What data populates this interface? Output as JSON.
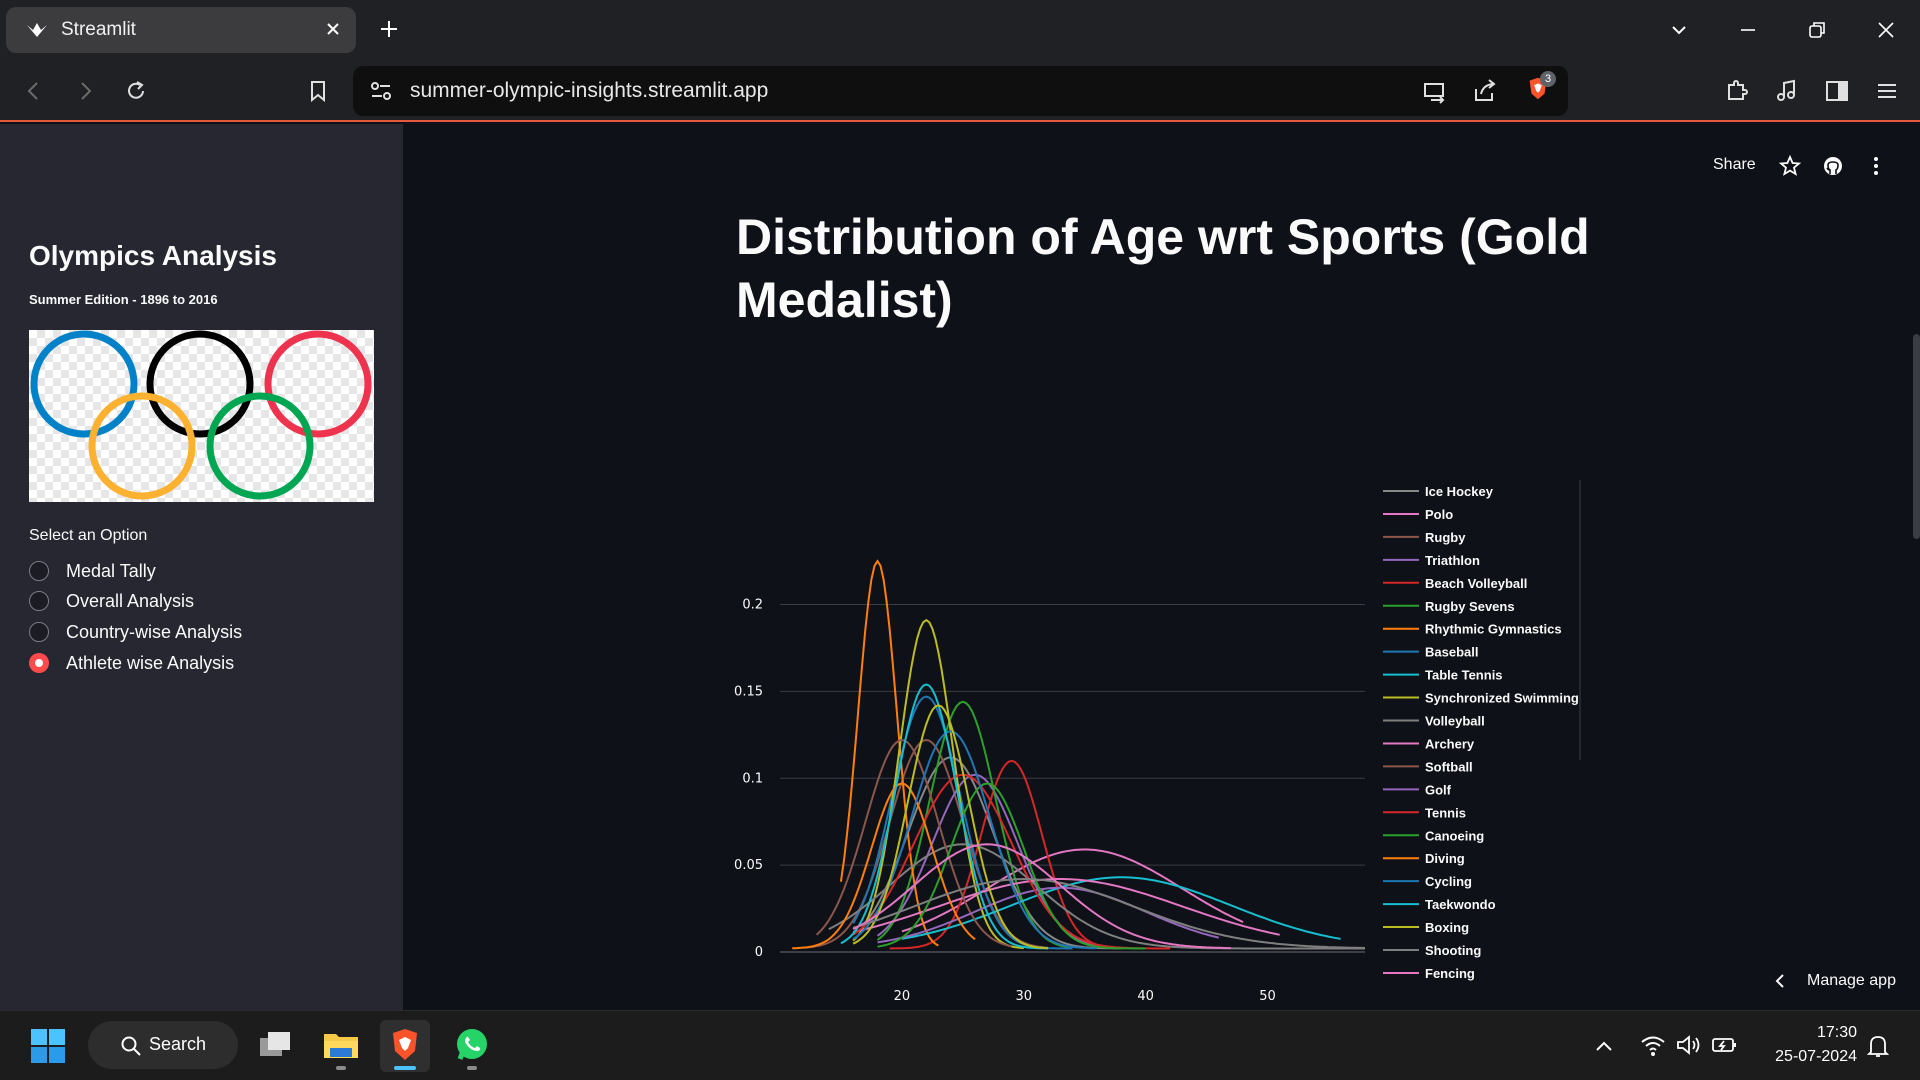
{
  "browser": {
    "tab_title": "Streamlit",
    "url": "summer-olympic-insights.streamlit.app",
    "shield_badge": "3"
  },
  "sidebar": {
    "title": "Olympics Analysis",
    "subtitle": "Summer Edition - 1896 to 2016",
    "select_label": "Select an Option",
    "options": [
      {
        "label": "Medal Tally",
        "selected": false
      },
      {
        "label": "Overall Analysis",
        "selected": false
      },
      {
        "label": "Country-wise Analysis",
        "selected": false
      },
      {
        "label": "Athlete wise Analysis",
        "selected": true
      }
    ]
  },
  "header": {
    "share_label": "Share"
  },
  "page": {
    "title": "Distribution of Age wrt Sports (Gold Medalist)"
  },
  "manage_app_label": "Manage app",
  "taskbar": {
    "search_label": "Search",
    "time": "17:30",
    "date": "25-07-2024"
  },
  "chart_data": {
    "type": "line",
    "title": "",
    "xlabel": "",
    "ylabel": "",
    "xlim": [
      10,
      58
    ],
    "ylim": [
      0,
      0.24
    ],
    "x_ticks": [
      "20",
      "30",
      "40",
      "50"
    ],
    "y_ticks": [
      "0",
      "0.05",
      "0.1",
      "0.15",
      "0.2"
    ],
    "grid": true,
    "legend_position": "right",
    "series": [
      {
        "name": "Ice Hockey",
        "color": "#888888",
        "peak": 24,
        "sd": 3.5,
        "amp": 0.11,
        "start": 17,
        "end": 38
      },
      {
        "name": "Polo",
        "color": "#e377c2",
        "peak": 35,
        "sd": 8,
        "amp": 0.057,
        "start": 20,
        "end": 48
      },
      {
        "name": "Rugby",
        "color": "#8c564b",
        "peak": 22,
        "sd": 3,
        "amp": 0.12,
        "start": 12,
        "end": 32
      },
      {
        "name": "Triathlon",
        "color": "#9467bd",
        "peak": 26,
        "sd": 3.5,
        "amp": 0.1,
        "start": 18,
        "end": 38
      },
      {
        "name": "Beach Volleyball",
        "color": "#d62728",
        "peak": 29,
        "sd": 2.5,
        "amp": 0.108,
        "start": 19,
        "end": 38
      },
      {
        "name": "Rugby Sevens",
        "color": "#2ca02c",
        "peak": 25,
        "sd": 2.7,
        "amp": 0.142,
        "start": 18,
        "end": 34
      },
      {
        "name": "Rhythmic Gymnastics",
        "color": "#ff7f0e",
        "peak": 18,
        "sd": 1.6,
        "amp": 0.223,
        "start": 15,
        "end": 23
      },
      {
        "name": "Baseball",
        "color": "#1f77b4",
        "peak": 22,
        "sd": 2.8,
        "amp": 0.145,
        "start": 16,
        "end": 34
      },
      {
        "name": "Table Tennis",
        "color": "#17becf",
        "peak": 38,
        "sd": 9,
        "amp": 0.041,
        "start": 20,
        "end": 56
      },
      {
        "name": "Synchronized Swimming",
        "color": "#bcbd22",
        "peak": 22,
        "sd": 2.2,
        "amp": 0.189,
        "start": 16,
        "end": 30
      },
      {
        "name": "Volleyball",
        "color": "#7f7f7f",
        "peak": 25,
        "sd": 6,
        "amp": 0.06,
        "start": 14,
        "end": 58
      },
      {
        "name": "Archery",
        "color": "#e377c2",
        "peak": 33,
        "sd": 10,
        "amp": 0.04,
        "start": 16,
        "end": 51
      },
      {
        "name": "Softball",
        "color": "#8c564b",
        "peak": 20,
        "sd": 3,
        "amp": 0.12,
        "start": 13,
        "end": 29
      },
      {
        "name": "Golf",
        "color": "#9467bd",
        "peak": 33,
        "sd": 7,
        "amp": 0.035,
        "start": 18,
        "end": 46
      },
      {
        "name": "Tennis",
        "color": "#d62728",
        "peak": 25,
        "sd": 4,
        "amp": 0.1,
        "start": 16,
        "end": 42
      },
      {
        "name": "Canoeing",
        "color": "#2ca02c",
        "peak": 27,
        "sd": 3,
        "amp": 0.095,
        "start": 18,
        "end": 40
      },
      {
        "name": "Diving",
        "color": "#ff7f0e",
        "peak": 20,
        "sd": 2.5,
        "amp": 0.095,
        "start": 11,
        "end": 26
      },
      {
        "name": "Cycling",
        "color": "#1f77b4",
        "peak": 24,
        "sd": 3.2,
        "amp": 0.125,
        "start": 16,
        "end": 36
      },
      {
        "name": "Taekwondo",
        "color": "#17becf",
        "peak": 22,
        "sd": 2.5,
        "amp": 0.152,
        "start": 15,
        "end": 32
      },
      {
        "name": "Boxing",
        "color": "#bcbd22",
        "peak": 23,
        "sd": 2.5,
        "amp": 0.14,
        "start": 16,
        "end": 32
      },
      {
        "name": "Shooting",
        "color": "#7f7f7f",
        "peak": 30,
        "sd": 9,
        "amp": 0.04,
        "start": 16,
        "end": 58
      },
      {
        "name": "Fencing",
        "color": "#e377c2",
        "peak": 27,
        "sd": 6,
        "amp": 0.06,
        "start": 16,
        "end": 47
      }
    ]
  }
}
